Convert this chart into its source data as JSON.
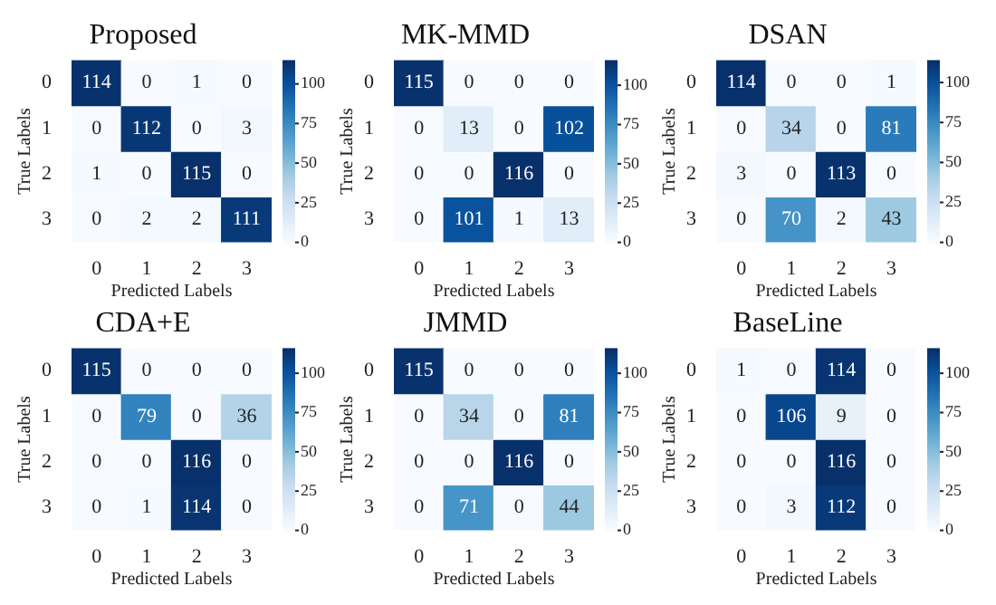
{
  "chart_data": [
    {
      "type": "heatmap",
      "title": "Proposed",
      "xlabel": "Predicted Labels",
      "ylabel": "True Labels",
      "categories": [
        "0",
        "1",
        "2",
        "3"
      ],
      "y_categories": [
        "0",
        "1",
        "2",
        "3"
      ],
      "cells": [
        [
          114,
          0,
          1,
          0
        ],
        [
          0,
          112,
          0,
          3
        ],
        [
          1,
          0,
          115,
          0
        ],
        [
          0,
          2,
          2,
          111
        ]
      ],
      "data_labels": true,
      "clim": [
        0,
        115
      ],
      "cticks": [
        0,
        25,
        50,
        75,
        100
      ]
    },
    {
      "type": "heatmap",
      "title": "MK-MMD",
      "xlabel": "Predicted Labels",
      "ylabel": "True Labels",
      "categories": [
        "0",
        "1",
        "2",
        "3"
      ],
      "y_categories": [
        "0",
        "1",
        "2",
        "3"
      ],
      "cells": [
        [
          115,
          0,
          0,
          0
        ],
        [
          0,
          13,
          0,
          102
        ],
        [
          0,
          0,
          116,
          0
        ],
        [
          0,
          101,
          1,
          13
        ]
      ],
      "data_labels": true,
      "clim": [
        0,
        116
      ],
      "cticks": [
        0,
        25,
        50,
        75,
        100
      ]
    },
    {
      "type": "heatmap",
      "title": "DSAN",
      "xlabel": "Predicted Labels",
      "ylabel": "True Labels",
      "categories": [
        "0",
        "1",
        "2",
        "3"
      ],
      "y_categories": [
        "0",
        "1",
        "2",
        "3"
      ],
      "cells": [
        [
          114,
          0,
          0,
          1
        ],
        [
          0,
          34,
          0,
          81
        ],
        [
          3,
          0,
          113,
          0
        ],
        [
          0,
          70,
          2,
          43
        ]
      ],
      "data_labels": true,
      "clim": [
        0,
        114
      ],
      "cticks": [
        0,
        25,
        50,
        75,
        100
      ]
    },
    {
      "type": "heatmap",
      "title": "CDA+E",
      "xlabel": "Predicted Labels",
      "ylabel": "True Labels",
      "categories": [
        "0",
        "1",
        "2",
        "3"
      ],
      "y_categories": [
        "0",
        "1",
        "2",
        "3"
      ],
      "cells": [
        [
          115,
          0,
          0,
          0
        ],
        [
          0,
          79,
          0,
          36
        ],
        [
          0,
          0,
          116,
          0
        ],
        [
          0,
          1,
          114,
          0
        ]
      ],
      "data_labels": true,
      "clim": [
        0,
        116
      ],
      "cticks": [
        0,
        25,
        50,
        75,
        100
      ]
    },
    {
      "type": "heatmap",
      "title": "JMMD",
      "xlabel": "Predicted Labels",
      "ylabel": "True Labels",
      "categories": [
        "0",
        "1",
        "2",
        "3"
      ],
      "y_categories": [
        "0",
        "1",
        "2",
        "3"
      ],
      "cells": [
        [
          115,
          0,
          0,
          0
        ],
        [
          0,
          34,
          0,
          81
        ],
        [
          0,
          0,
          116,
          0
        ],
        [
          0,
          71,
          0,
          44
        ]
      ],
      "data_labels": true,
      "clim": [
        0,
        116
      ],
      "cticks": [
        0,
        25,
        50,
        75,
        100
      ]
    },
    {
      "type": "heatmap",
      "title": "BaseLine",
      "xlabel": "Predicted Labels",
      "ylabel": "True Labels",
      "categories": [
        "0",
        "1",
        "2",
        "3"
      ],
      "y_categories": [
        "0",
        "1",
        "2",
        "3"
      ],
      "cells": [
        [
          1,
          0,
          114,
          0
        ],
        [
          0,
          106,
          9,
          0
        ],
        [
          0,
          0,
          116,
          0
        ],
        [
          0,
          3,
          112,
          0
        ]
      ],
      "data_labels": true,
      "clim": [
        0,
        116
      ],
      "cticks": [
        0,
        25,
        50,
        75,
        100
      ]
    }
  ]
}
